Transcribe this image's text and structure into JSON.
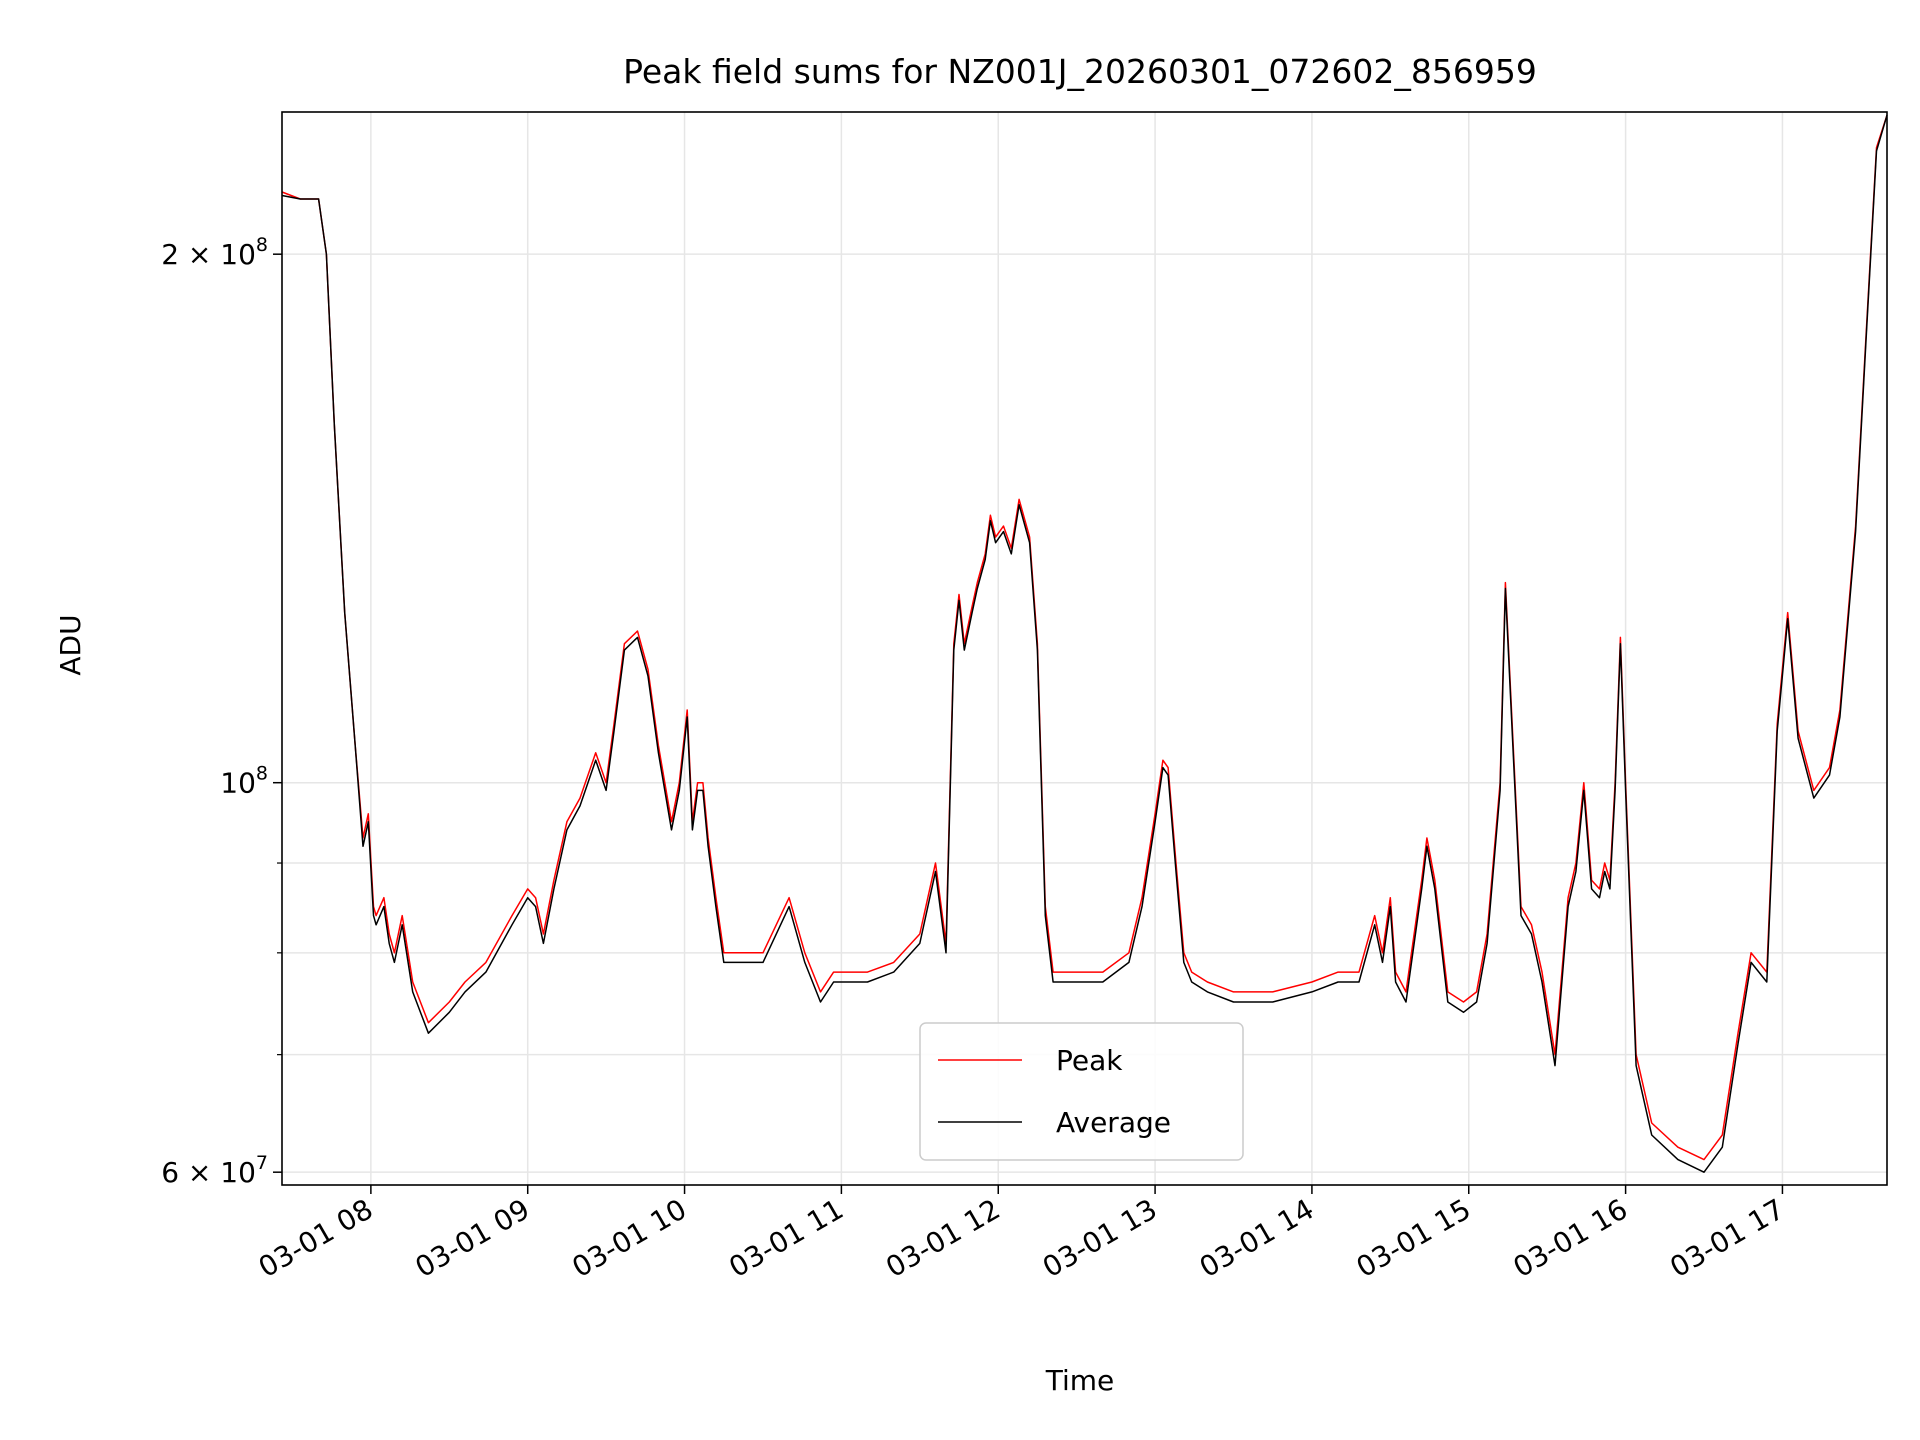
{
  "chart_data": {
    "type": "line",
    "title": "Peak field sums for NZ001J_20260301_072602_856959",
    "xlabel": "Time",
    "ylabel": "ADU",
    "xlim": [
      "2026-03-01 07:26",
      "2026-03-01 17:40"
    ],
    "ylim": [
      59000000,
      241000000
    ],
    "yscale": "log",
    "grid": true,
    "legend_position": "lower-center",
    "x_ticks": [
      {
        "value": "2026-03-01 08:00",
        "label": "03-01 08"
      },
      {
        "value": "2026-03-01 09:00",
        "label": "03-01 09"
      },
      {
        "value": "2026-03-01 10:00",
        "label": "03-01 10"
      },
      {
        "value": "2026-03-01 11:00",
        "label": "03-01 11"
      },
      {
        "value": "2026-03-01 12:00",
        "label": "03-01 12"
      },
      {
        "value": "2026-03-01 13:00",
        "label": "03-01 13"
      },
      {
        "value": "2026-03-01 14:00",
        "label": "03-01 14"
      },
      {
        "value": "2026-03-01 15:00",
        "label": "03-01 15"
      },
      {
        "value": "2026-03-01 16:00",
        "label": "03-01 16"
      },
      {
        "value": "2026-03-01 17:00",
        "label": "03-01 17"
      }
    ],
    "y_ticks_major": [
      {
        "value": 60000000,
        "label": "6 × 10",
        "exp": "7"
      },
      {
        "value": 100000000,
        "label": "10",
        "exp": "8"
      },
      {
        "value": 200000000,
        "label": "2 × 10",
        "exp": "8"
      }
    ],
    "y_ticks_minor": [
      70000000,
      80000000,
      90000000
    ],
    "x": [
      "2026-03-01 07:26",
      "2026-03-01 07:33",
      "2026-03-01 07:40",
      "2026-03-01 07:43",
      "2026-03-01 07:46",
      "2026-03-01 07:50",
      "2026-03-01 07:54",
      "2026-03-01 07:57",
      "2026-03-01 07:59",
      "2026-03-01 08:01",
      "2026-03-01 08:02",
      "2026-03-01 08:05",
      "2026-03-01 08:07",
      "2026-03-01 08:09",
      "2026-03-01 08:12",
      "2026-03-01 08:16",
      "2026-03-01 08:22",
      "2026-03-01 08:30",
      "2026-03-01 08:36",
      "2026-03-01 08:44",
      "2026-03-01 08:54",
      "2026-03-01 09:00",
      "2026-03-01 09:03",
      "2026-03-01 09:06",
      "2026-03-01 09:10",
      "2026-03-01 09:15",
      "2026-03-01 09:20",
      "2026-03-01 09:26",
      "2026-03-01 09:30",
      "2026-03-01 09:33",
      "2026-03-01 09:37",
      "2026-03-01 09:42",
      "2026-03-01 09:46",
      "2026-03-01 09:50",
      "2026-03-01 09:55",
      "2026-03-01 09:58",
      "2026-03-01 10:01",
      "2026-03-01 10:03",
      "2026-03-01 10:05",
      "2026-03-01 10:07",
      "2026-03-01 10:09",
      "2026-03-01 10:12",
      "2026-03-01 10:15",
      "2026-03-01 10:20",
      "2026-03-01 10:30",
      "2026-03-01 10:40",
      "2026-03-01 10:46",
      "2026-03-01 10:52",
      "2026-03-01 10:57",
      "2026-03-01 11:00",
      "2026-03-01 11:10",
      "2026-03-01 11:20",
      "2026-03-01 11:30",
      "2026-03-01 11:36",
      "2026-03-01 11:40",
      "2026-03-01 11:43",
      "2026-03-01 11:45",
      "2026-03-01 11:47",
      "2026-03-01 11:50",
      "2026-03-01 11:52",
      "2026-03-01 11:55",
      "2026-03-01 11:57",
      "2026-03-01 11:59",
      "2026-03-01 12:02",
      "2026-03-01 12:05",
      "2026-03-01 12:08",
      "2026-03-01 12:12",
      "2026-03-01 12:15",
      "2026-03-01 12:18",
      "2026-03-01 12:21",
      "2026-03-01 12:23",
      "2026-03-01 12:30",
      "2026-03-01 12:40",
      "2026-03-01 12:50",
      "2026-03-01 12:55",
      "2026-03-01 13:00",
      "2026-03-01 13:03",
      "2026-03-01 13:05",
      "2026-03-01 13:08",
      "2026-03-01 13:11",
      "2026-03-01 13:14",
      "2026-03-01 13:20",
      "2026-03-01 13:30",
      "2026-03-01 13:45",
      "2026-03-01 14:00",
      "2026-03-01 14:10",
      "2026-03-01 14:18",
      "2026-03-01 14:24",
      "2026-03-01 14:27",
      "2026-03-01 14:30",
      "2026-03-01 14:32",
      "2026-03-01 14:36",
      "2026-03-01 14:42",
      "2026-03-01 14:44",
      "2026-03-01 14:47",
      "2026-03-01 14:52",
      "2026-03-01 14:58",
      "2026-03-01 15:03",
      "2026-03-01 15:07",
      "2026-03-01 15:12",
      "2026-03-01 15:14",
      "2026-03-01 15:17",
      "2026-03-01 15:20",
      "2026-03-01 15:24",
      "2026-03-01 15:28",
      "2026-03-01 15:33",
      "2026-03-01 15:38",
      "2026-03-01 15:41",
      "2026-03-01 15:44",
      "2026-03-01 15:47",
      "2026-03-01 15:50",
      "2026-03-01 15:52",
      "2026-03-01 15:54",
      "2026-03-01 15:56",
      "2026-03-01 15:58",
      "2026-03-01 16:00",
      "2026-03-01 16:04",
      "2026-03-01 16:10",
      "2026-03-01 16:20",
      "2026-03-01 16:30",
      "2026-03-01 16:37",
      "2026-03-01 16:43",
      "2026-03-01 16:48",
      "2026-03-01 16:54",
      "2026-03-01 16:58",
      "2026-03-01 17:02",
      "2026-03-01 17:06",
      "2026-03-01 17:12",
      "2026-03-01 17:18",
      "2026-03-01 17:22",
      "2026-03-01 17:28",
      "2026-03-01 17:32",
      "2026-03-01 17:36",
      "2026-03-01 17:40"
    ],
    "series": [
      {
        "name": "Peak",
        "color": "#ff0000",
        "values": [
          217,
          215,
          215,
          200,
          160,
          125,
          105,
          93,
          96,
          85,
          84,
          86,
          82,
          80,
          84,
          77,
          73,
          75,
          77,
          79,
          84,
          87,
          86,
          82,
          88,
          95,
          98,
          104,
          100,
          108,
          120,
          122,
          116,
          105,
          95,
          100,
          110,
          95,
          100,
          100,
          93,
          86,
          80,
          80,
          80,
          86,
          80,
          76,
          78,
          78,
          78,
          79,
          82,
          90,
          81,
          120,
          128,
          120,
          126,
          130,
          135,
          142,
          138,
          140,
          136,
          145,
          138,
          120,
          85,
          78,
          78,
          78,
          78,
          80,
          86,
          96,
          103,
          102,
          90,
          80,
          78,
          77,
          76,
          76,
          77,
          78,
          78,
          84,
          80,
          86,
          78,
          76,
          88,
          93,
          88,
          76,
          75,
          76,
          82,
          100,
          130,
          105,
          85,
          83,
          78,
          70,
          86,
          90,
          100,
          88,
          87,
          90,
          88,
          100,
          121,
          100,
          70,
          64,
          62,
          61,
          63,
          72,
          80,
          78,
          108,
          125,
          107,
          99,
          102,
          110,
          140,
          180,
          230,
          240
        ]
      },
      {
        "name": "Average",
        "color": "#000000",
        "values": [
          216,
          215,
          215,
          200,
          160,
          125,
          105,
          92,
          95,
          84,
          83,
          85,
          81,
          79,
          83,
          76,
          72,
          74,
          76,
          78,
          83,
          86,
          85,
          81,
          87,
          94,
          97,
          103,
          99,
          107,
          119,
          121,
          115,
          104,
          94,
          99,
          109,
          94,
          99,
          99,
          92,
          85,
          79,
          79,
          79,
          85,
          79,
          75,
          77,
          77,
          77,
          78,
          81,
          89,
          80,
          119,
          127,
          119,
          125,
          129,
          134,
          141,
          137,
          139,
          135,
          144,
          137,
          119,
          84,
          77,
          77,
          77,
          77,
          79,
          85,
          95,
          102,
          101,
          89,
          79,
          77,
          76,
          75,
          75,
          76,
          77,
          77,
          83,
          79,
          85,
          77,
          75,
          87,
          92,
          87,
          75,
          74,
          75,
          81,
          99,
          129,
          104,
          84,
          82,
          77,
          69,
          85,
          89,
          99,
          87,
          86,
          89,
          87,
          99,
          120,
          99,
          69,
          63,
          61,
          60,
          62,
          71,
          79,
          77,
          107,
          124,
          106,
          98,
          101,
          109,
          139,
          179,
          229,
          240
        ]
      }
    ],
    "value_scale_note": "values in millions of ADU"
  }
}
